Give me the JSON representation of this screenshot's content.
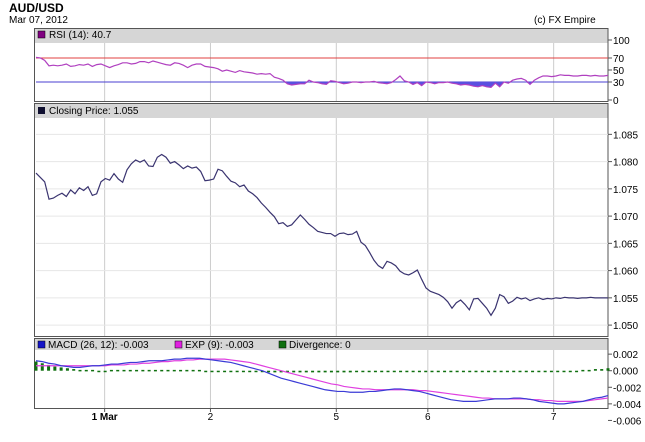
{
  "header": {
    "title": "AUD/USD",
    "date": "Mar 07, 2012",
    "credit": "(c) FX Empire"
  },
  "colors": {
    "panel_header": "#d6d6d6",
    "grid": "#cccccc",
    "price_line": "#3a3470",
    "rsi_line": "#b040c0",
    "rsi_fill": "#5a4fe0",
    "rsi_70_line": "#e04040",
    "rsi_30_line": "#4a3fd0",
    "macd_line": "#3b3bd6",
    "exp_line": "#e040e0",
    "divergence": "#107010"
  },
  "chart_data": [
    {
      "type": "line",
      "panel": "rsi",
      "legend": "RSI (14): 40.7",
      "legend_color": "#800080",
      "ylim": [
        0,
        100
      ],
      "yticks": [
        {
          "value": 100,
          "label": "100",
          "color": "#000000"
        },
        {
          "value": 70,
          "label": "70",
          "color": "#e04040"
        },
        {
          "value": 50,
          "label": "50",
          "color": "#000000"
        },
        {
          "value": 30,
          "label": "30",
          "color": "#4a3fd0"
        },
        {
          "value": 0,
          "label": "0",
          "color": "#000000"
        }
      ],
      "reference_lines": [
        70,
        30
      ],
      "x": [
        0,
        1,
        2,
        3,
        4,
        5,
        6,
        7,
        8,
        9,
        10,
        11,
        12,
        13,
        14,
        15,
        16,
        17,
        18,
        19,
        20,
        21,
        22,
        23,
        24,
        25,
        26,
        27,
        28,
        29,
        30,
        31,
        32,
        33,
        34,
        35,
        36,
        37,
        38,
        39,
        40,
        41,
        42,
        43,
        44,
        45,
        46,
        47,
        48,
        49,
        50,
        51,
        52,
        53,
        54,
        55,
        56,
        57,
        58,
        59,
        60,
        61,
        62,
        63,
        64,
        65,
        66,
        67,
        68,
        69,
        70,
        71,
        72,
        73,
        74,
        75,
        76,
        77,
        78,
        79,
        80,
        81,
        82,
        83,
        84,
        85,
        86,
        87,
        88,
        89,
        90,
        91,
        92,
        93,
        94,
        95,
        96,
        97,
        98,
        99,
        100,
        101,
        102,
        103,
        104,
        105,
        106,
        107,
        108,
        109,
        110,
        111,
        112,
        113,
        114,
        115,
        116,
        117,
        118,
        119,
        120,
        121,
        122,
        123,
        124,
        125,
        126,
        127,
        128,
        129,
        130,
        131,
        132
      ],
      "series": [
        {
          "name": "RSI (14)",
          "values": [
            71,
            70,
            66,
            57,
            58,
            57,
            58,
            60,
            56,
            57,
            59,
            58,
            60,
            56,
            59,
            60,
            57,
            54,
            57,
            59,
            62,
            62,
            60,
            61,
            64,
            64,
            62,
            65,
            63,
            61,
            59,
            58,
            62,
            61,
            58,
            54,
            58,
            60,
            60,
            56,
            55,
            54,
            52,
            48,
            50,
            48,
            46,
            49,
            47,
            46,
            45,
            43,
            44,
            43,
            44,
            38,
            36,
            33,
            27,
            25,
            26,
            27,
            27,
            33,
            30,
            29,
            27,
            26,
            32,
            31,
            29,
            27,
            28,
            30,
            30,
            29,
            30,
            30,
            31,
            29,
            28,
            27,
            29,
            34,
            40,
            32,
            30,
            26,
            29,
            24,
            30,
            29,
            27,
            29,
            29,
            30,
            28,
            27,
            25,
            26,
            25,
            23,
            22,
            24,
            22,
            21,
            28,
            22,
            30,
            28,
            33,
            35,
            36,
            33,
            26,
            33,
            37,
            40,
            40,
            39,
            40,
            42,
            41,
            41,
            40,
            40,
            41,
            41,
            40,
            41,
            40,
            40,
            41
          ]
        }
      ]
    },
    {
      "type": "line",
      "panel": "price",
      "legend": "Closing Price: 1.055",
      "legend_color": "#101030",
      "ylim": [
        1.048,
        1.088
      ],
      "yticks": [
        "1.085",
        "1.080",
        "1.075",
        "1.070",
        "1.065",
        "1.060",
        "1.055",
        "1.050"
      ],
      "series": [
        {
          "name": "Closing Price",
          "values": [
            1.0779,
            1.0771,
            1.0763,
            1.0731,
            1.0733,
            1.0738,
            1.0742,
            1.0736,
            1.0748,
            1.0741,
            1.0752,
            1.0747,
            1.0754,
            1.0738,
            1.0741,
            1.0763,
            1.0769,
            1.0766,
            1.0778,
            1.0768,
            1.0762,
            1.0785,
            1.0796,
            1.0803,
            1.0799,
            1.0803,
            1.0792,
            1.0791,
            1.0808,
            1.0813,
            1.0808,
            1.0797,
            1.08,
            1.0794,
            1.0787,
            1.0792,
            1.0788,
            1.079,
            1.0782,
            1.0765,
            1.0766,
            1.0768,
            1.0786,
            1.0783,
            1.0773,
            1.0764,
            1.0761,
            1.0754,
            1.0757,
            1.0746,
            1.0741,
            1.0734,
            1.0724,
            1.0716,
            1.0707,
            1.0699,
            1.0686,
            1.0688,
            1.0681,
            1.0684,
            1.0693,
            1.0702,
            1.0694,
            1.0685,
            1.0679,
            1.0672,
            1.067,
            1.0668,
            1.0668,
            1.0663,
            1.0668,
            1.0669,
            1.0666,
            1.0667,
            1.0672,
            1.0652,
            1.0646,
            1.0633,
            1.0619,
            1.0609,
            1.0604,
            1.0617,
            1.0614,
            1.0609,
            1.0599,
            1.0594,
            1.0592,
            1.0596,
            1.0601,
            1.0584,
            1.0568,
            1.0562,
            1.0559,
            1.0556,
            1.0551,
            1.0543,
            1.0531,
            1.0541,
            1.0546,
            1.0538,
            1.0528,
            1.0548,
            1.0549,
            1.054,
            1.0531,
            1.0518,
            1.0531,
            1.0556,
            1.0552,
            1.054,
            1.0544,
            1.0551,
            1.0548,
            1.055,
            1.0545,
            1.0548,
            1.055,
            1.0547,
            1.0549,
            1.0548,
            1.055,
            1.0549,
            1.0551,
            1.055,
            1.055,
            1.0549,
            1.055,
            1.055,
            1.0551,
            1.055,
            1.055,
            1.055,
            1.055
          ]
        }
      ]
    },
    {
      "type": "line",
      "panel": "macd",
      "legends": [
        {
          "label": "MACD (26, 12): -0.003",
          "color": "#1414c8"
        },
        {
          "label": "EXP (9): -0.003",
          "color": "#e020e0"
        },
        {
          "label": "Divergence: 0",
          "color": "#107010"
        }
      ],
      "ylim": [
        -0.0045,
        0.0025
      ],
      "yticks": [
        "0.002",
        "0.000",
        "-0.002",
        "-0.004",
        "-0.006"
      ],
      "series": [
        {
          "name": "MACD (26, 12)",
          "values": [
            0.0012,
            0.0011,
            0.0009,
            0.0008,
            0.0006,
            0.0005,
            0.0004,
            0.0004,
            0.0005,
            0.0006,
            0.0006,
            0.0007,
            0.0008,
            0.0008,
            0.0009,
            0.001,
            0.001,
            0.0011,
            0.0012,
            0.0012,
            0.0012,
            0.0013,
            0.0014,
            0.0014,
            0.0015,
            0.0015,
            0.0015,
            0.0014,
            0.0013,
            0.0012,
            0.0011,
            0.001,
            0.0008,
            0.0006,
            0.0004,
            0.0002,
            0.0,
            -0.0003,
            -0.0006,
            -0.0009,
            -0.0011,
            -0.0013,
            -0.0015,
            -0.0017,
            -0.0019,
            -0.0021,
            -0.0023,
            -0.0024,
            -0.0025,
            -0.0025,
            -0.0026,
            -0.0026,
            -0.0026,
            -0.0025,
            -0.0025,
            -0.0024,
            -0.0023,
            -0.0022,
            -0.0022,
            -0.0023,
            -0.0024,
            -0.0025,
            -0.0027,
            -0.0029,
            -0.0031,
            -0.0033,
            -0.0035,
            -0.0036,
            -0.0037,
            -0.0037,
            -0.0037,
            -0.0036,
            -0.0035,
            -0.0034,
            -0.0034,
            -0.0034,
            -0.0033,
            -0.0033,
            -0.0034,
            -0.0035,
            -0.0037,
            -0.0038,
            -0.0039,
            -0.004,
            -0.004,
            -0.0039,
            -0.0038,
            -0.0037,
            -0.0035,
            -0.0033,
            -0.0032,
            -0.003
          ]
        },
        {
          "name": "EXP (9)",
          "values": [
            0.0006,
            0.0006,
            0.0006,
            0.0006,
            0.0006,
            0.0006,
            0.0006,
            0.0006,
            0.0006,
            0.0006,
            0.0006,
            0.0006,
            0.0007,
            0.0007,
            0.0007,
            0.0008,
            0.0008,
            0.0009,
            0.0009,
            0.001,
            0.0011,
            0.0011,
            0.0012,
            0.0012,
            0.0013,
            0.0013,
            0.0014,
            0.0014,
            0.0014,
            0.0014,
            0.0014,
            0.0013,
            0.0012,
            0.0011,
            0.001,
            0.0008,
            0.0006,
            0.0004,
            0.0002,
            0.0,
            -0.0002,
            -0.0004,
            -0.0006,
            -0.0008,
            -0.001,
            -0.0012,
            -0.0014,
            -0.0016,
            -0.0017,
            -0.0019,
            -0.002,
            -0.0021,
            -0.0022,
            -0.0022,
            -0.0023,
            -0.0023,
            -0.0023,
            -0.0023,
            -0.0023,
            -0.0023,
            -0.0023,
            -0.0024,
            -0.0024,
            -0.0025,
            -0.0026,
            -0.0027,
            -0.0028,
            -0.0029,
            -0.003,
            -0.0031,
            -0.0032,
            -0.0033,
            -0.0033,
            -0.0034,
            -0.0034,
            -0.0034,
            -0.0034,
            -0.0034,
            -0.0034,
            -0.0035,
            -0.0035,
            -0.0036,
            -0.0036,
            -0.0037,
            -0.0037,
            -0.0037,
            -0.0037,
            -0.0037,
            -0.0036,
            -0.0035,
            -0.0034,
            -0.0033
          ]
        }
      ],
      "divergence": [
        0.0011,
        0.0009,
        0.0007,
        0.0005,
        0.0004,
        0.0003,
        0.0002,
        0.0001,
        0.0001,
        0.0001,
        0,
        0,
        0.0001,
        0.0001,
        0.0001,
        0.0001,
        0.0001,
        0.0001,
        0.0001,
        0.0001,
        0.0001,
        0.0001,
        0.0001,
        0.0001,
        0.0001,
        0.0001,
        0.0001,
        0,
        0,
        0,
        -0.0001,
        -0.0001,
        -0.0001,
        -0.0001,
        -0.0001,
        -0.0001,
        -0.0001,
        -0.0002,
        -0.0002,
        -0.0002,
        -0.0002,
        -0.0002,
        -0.0002,
        -0.0002,
        -0.0002,
        -0.0002,
        -0.0002,
        -0.0002,
        -0.0002,
        -0.0002,
        -0.0002,
        -0.0001,
        -0.0001,
        -0.0001,
        -0.0001,
        -0.0001,
        -0.0001,
        -0.0001,
        -0.0001,
        -0.0001,
        -0.0001,
        -0.0001,
        -0.0001,
        -0.0001,
        -0.0001,
        -0.0001,
        -0.0001,
        -0.0001,
        -0.0001,
        -0.0001,
        -0.0001,
        -0.0001,
        -0.0001,
        -0.0001,
        -0.0001,
        -0.0001,
        -0.0001,
        -0.0001,
        -0.0001,
        -0.0001,
        -0.0001,
        -0.0001,
        -0.0001,
        -0.0001,
        -0.0001,
        -0.0001,
        -0.0001,
        0.0001,
        0.0001,
        0.0002,
        0.0002,
        0.0003
      ]
    }
  ],
  "x_axis": {
    "ticks": [
      {
        "pos": 0.12,
        "label": "1 Mar",
        "bold": true
      },
      {
        "pos": 0.305,
        "label": "2",
        "bold": false
      },
      {
        "pos": 0.525,
        "label": "5",
        "bold": false
      },
      {
        "pos": 0.685,
        "label": "6",
        "bold": false
      },
      {
        "pos": 0.905,
        "label": "7",
        "bold": false
      }
    ]
  }
}
